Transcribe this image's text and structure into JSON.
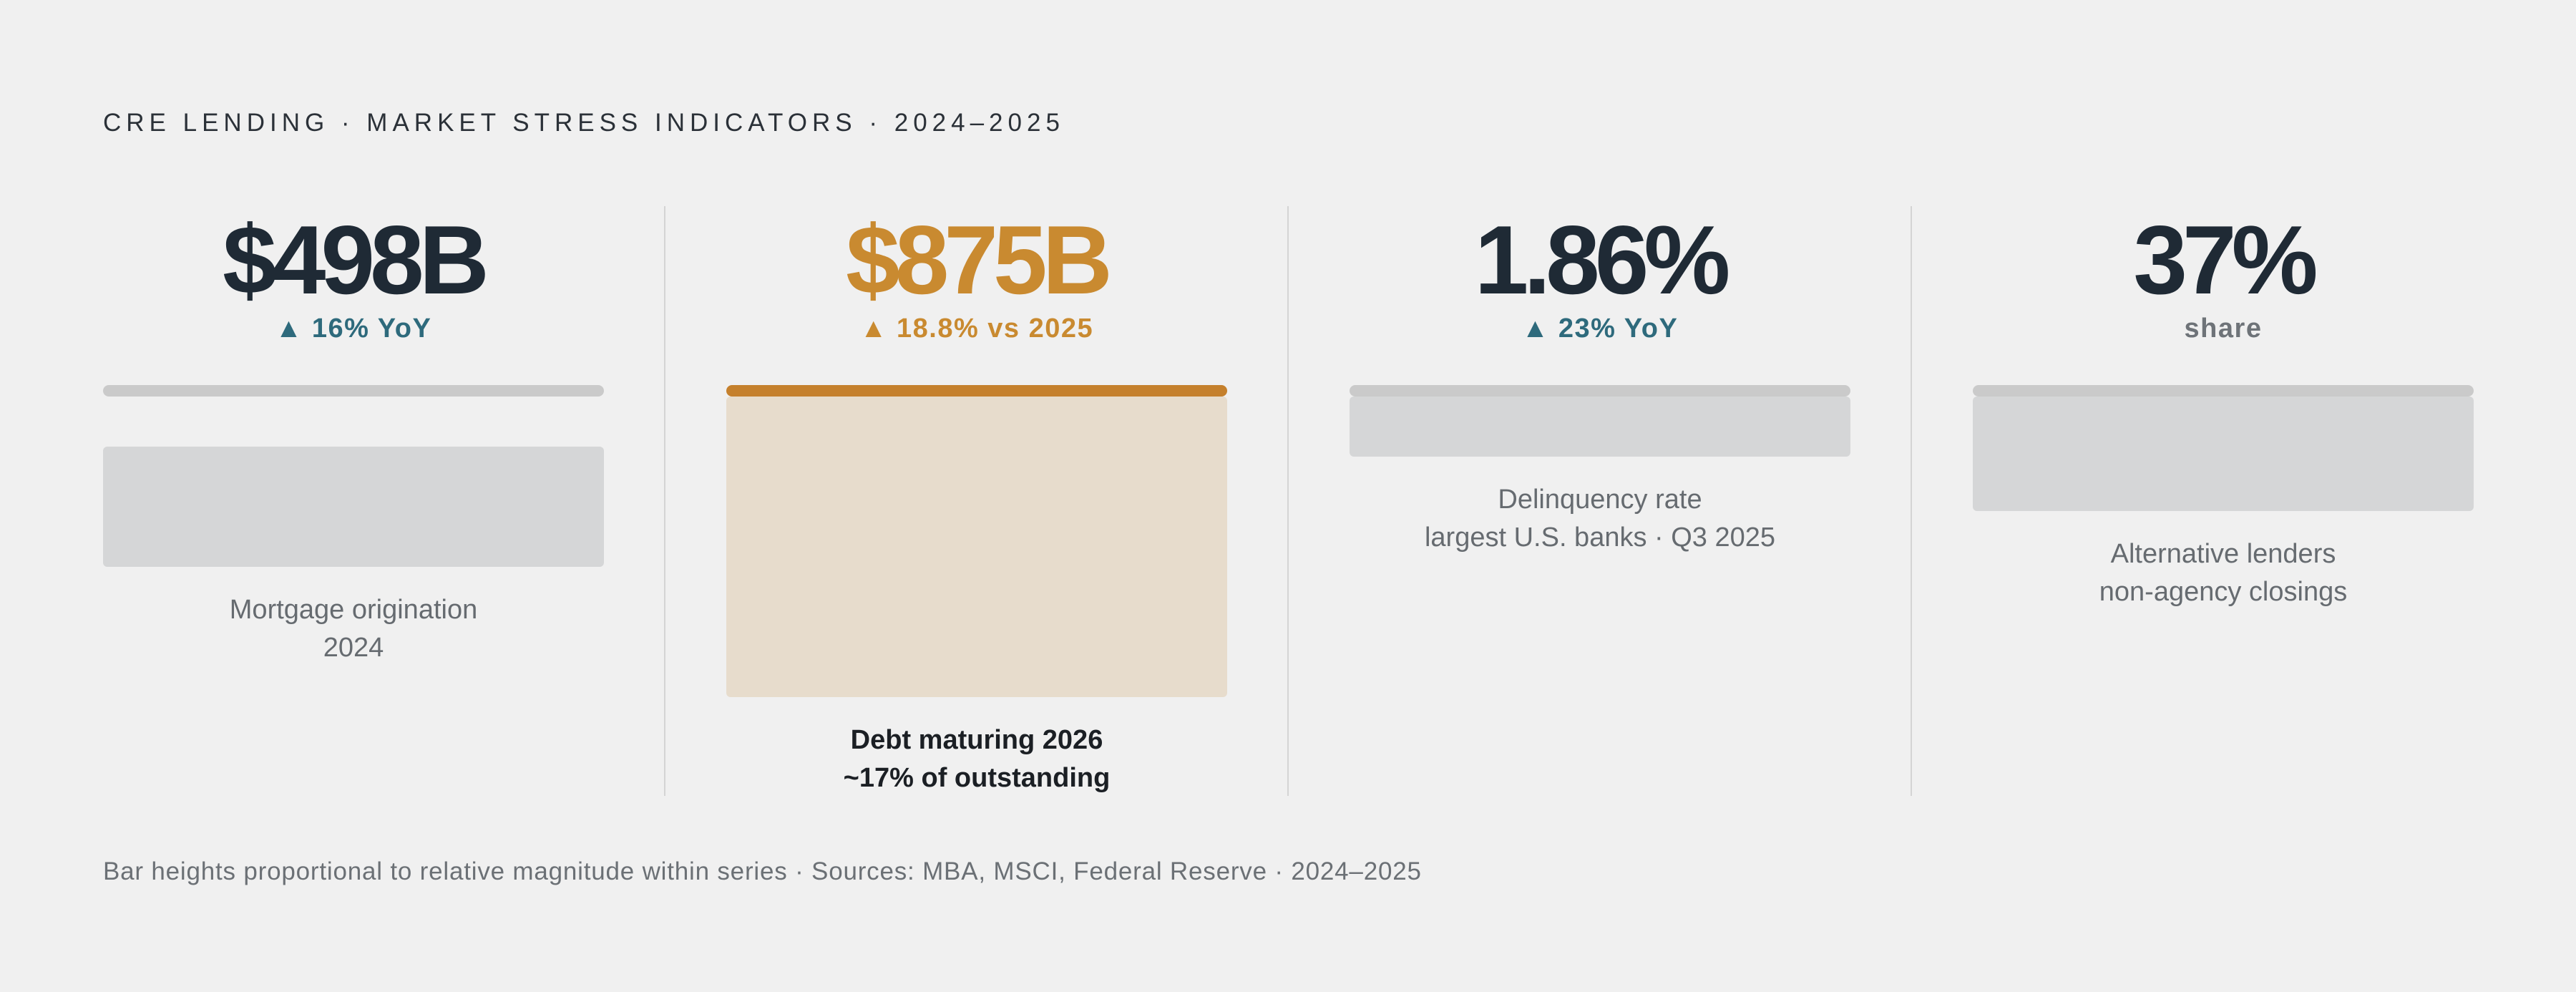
{
  "title": "CRE LENDING · MARKET STRESS INDICATORS · 2024–2025",
  "colors": {
    "background": "#f0f0f0",
    "text_dark": "#1f2a35",
    "accent": "#c98a30",
    "teal": "#2e6a7c",
    "muted_bar": "#d5d6d7",
    "accent_bar": "#e7dccc"
  },
  "chart_data": {
    "type": "bar",
    "note": "Bar heights proportional to relative magnitude within series",
    "series": [
      {
        "value": "$498B",
        "change": "▲ 16% YoY",
        "caption": [
          "Mortgage origination",
          "2024"
        ],
        "relative_magnitude": 0.4,
        "highlight": false
      },
      {
        "value": "$875B",
        "change": "▲ 18.8% vs 2025",
        "caption": [
          "Debt maturing 2026",
          "~17% of outstanding"
        ],
        "relative_magnitude": 1.0,
        "highlight": true
      },
      {
        "value": "1.86%",
        "change": "▲ 23% YoY",
        "caption": [
          "Delinquency rate",
          "largest U.S. banks · Q3 2025"
        ],
        "relative_magnitude": 0.2,
        "highlight": false
      },
      {
        "value": "37%",
        "change": "share",
        "caption": [
          "Alternative lenders",
          "non-agency closings"
        ],
        "relative_magnitude": 0.38,
        "highlight": false
      }
    ]
  },
  "footnote": "Bar heights proportional to relative magnitude within series · Sources: MBA, MSCI, Federal Reserve · 2024–2025"
}
